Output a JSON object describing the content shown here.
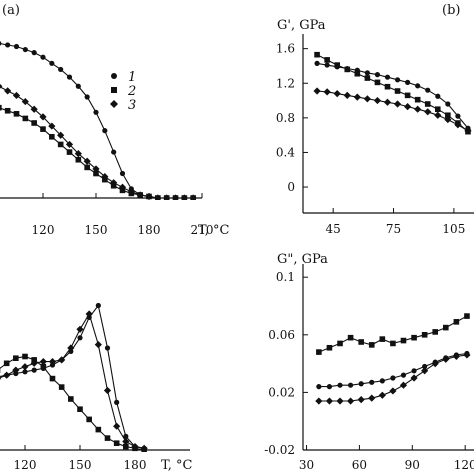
{
  "panel_labels": [
    "(a)",
    "(b)"
  ],
  "legend": [
    "1",
    "2",
    "3"
  ],
  "chart_data": [
    {
      "id": "top-left",
      "type": "line",
      "xlabel": "T, °C",
      "ylabel": "",
      "xlim": [
        90,
        210
      ],
      "ylim": [
        0,
        1.15
      ],
      "xticks": [
        120,
        150,
        180,
        210
      ],
      "yticks": [],
      "grid": false,
      "legend_position": "top-right",
      "series": [
        {
          "name": "1",
          "marker": "circle",
          "x": [
            90,
            95,
            100,
            105,
            110,
            115,
            120,
            125,
            130,
            135,
            140,
            145,
            150,
            155,
            160,
            165,
            170,
            175,
            180,
            185,
            190,
            195,
            200,
            205
          ],
          "y": [
            1.02,
            1.01,
            1.0,
            0.99,
            0.97,
            0.95,
            0.92,
            0.88,
            0.84,
            0.79,
            0.73,
            0.66,
            0.56,
            0.44,
            0.3,
            0.16,
            0.06,
            0.02,
            0.01,
            0.0,
            0.0,
            0.0,
            0.0,
            0.0
          ]
        },
        {
          "name": "2",
          "marker": "square",
          "x": [
            90,
            95,
            100,
            105,
            110,
            115,
            120,
            125,
            130,
            135,
            140,
            145,
            150,
            155,
            160,
            165,
            170,
            175,
            180,
            185,
            190,
            195,
            200,
            205
          ],
          "y": [
            0.6,
            0.59,
            0.57,
            0.55,
            0.52,
            0.49,
            0.45,
            0.4,
            0.35,
            0.3,
            0.25,
            0.2,
            0.16,
            0.12,
            0.08,
            0.05,
            0.03,
            0.02,
            0.01,
            0.0,
            0.0,
            0.0,
            0.0,
            0.0
          ]
        },
        {
          "name": "3",
          "marker": "diamond",
          "x": [
            90,
            95,
            100,
            105,
            110,
            115,
            120,
            125,
            130,
            135,
            140,
            145,
            150,
            155,
            160,
            165,
            170,
            175,
            180,
            185,
            190,
            195,
            200,
            205
          ],
          "y": [
            0.75,
            0.73,
            0.7,
            0.67,
            0.63,
            0.58,
            0.53,
            0.47,
            0.41,
            0.35,
            0.29,
            0.24,
            0.19,
            0.14,
            0.1,
            0.07,
            0.04,
            0.02,
            0.01,
            0.0,
            0.0,
            0.0,
            0.0,
            0.0
          ]
        }
      ]
    },
    {
      "id": "top-right",
      "type": "line",
      "xlabel": "",
      "ylabel": "G', GPa",
      "xlim": [
        30,
        115
      ],
      "ylim": [
        -0.3,
        1.7
      ],
      "xticks": [
        45,
        75,
        105
      ],
      "yticks": [
        0,
        0.4,
        0.8,
        1.2,
        1.6
      ],
      "grid": false,
      "series": [
        {
          "name": "1",
          "marker": "circle",
          "x": [
            37,
            42,
            47,
            52,
            57,
            62,
            67,
            72,
            77,
            82,
            87,
            92,
            97,
            102,
            107,
            112
          ],
          "y": [
            1.43,
            1.41,
            1.39,
            1.37,
            1.35,
            1.32,
            1.3,
            1.27,
            1.24,
            1.21,
            1.17,
            1.12,
            1.05,
            0.96,
            0.82,
            0.68
          ]
        },
        {
          "name": "2",
          "marker": "square",
          "x": [
            37,
            42,
            47,
            52,
            57,
            62,
            67,
            72,
            77,
            82,
            87,
            92,
            97,
            102,
            107,
            112
          ],
          "y": [
            1.53,
            1.47,
            1.41,
            1.36,
            1.31,
            1.26,
            1.21,
            1.16,
            1.11,
            1.06,
            1.01,
            0.96,
            0.9,
            0.83,
            0.74,
            0.64
          ]
        },
        {
          "name": "3",
          "marker": "diamond",
          "x": [
            37,
            42,
            47,
            52,
            57,
            62,
            67,
            72,
            77,
            82,
            87,
            92,
            97,
            102,
            107,
            112
          ],
          "y": [
            1.11,
            1.1,
            1.08,
            1.06,
            1.04,
            1.02,
            1.0,
            0.98,
            0.96,
            0.93,
            0.9,
            0.87,
            0.83,
            0.78,
            0.72,
            0.65
          ]
        }
      ]
    },
    {
      "id": "bottom-left",
      "type": "line",
      "xlabel": "T, °C",
      "ylabel": "",
      "xlim": [
        90,
        210
      ],
      "ylim": [
        0,
        1.0
      ],
      "xticks": [
        120,
        150,
        180
      ],
      "yticks": [],
      "grid": false,
      "series": [
        {
          "name": "1",
          "marker": "circle",
          "x": [
            90,
            95,
            100,
            105,
            110,
            115,
            120,
            125,
            130,
            135,
            140,
            145,
            150,
            155,
            160,
            165,
            170,
            175,
            180,
            185
          ],
          "y": [
            0.4,
            0.41,
            0.42,
            0.43,
            0.44,
            0.45,
            0.46,
            0.47,
            0.48,
            0.5,
            0.53,
            0.58,
            0.66,
            0.78,
            0.85,
            0.6,
            0.28,
            0.08,
            0.02,
            0.01
          ]
        },
        {
          "name": "2",
          "marker": "square",
          "x": [
            90,
            95,
            100,
            105,
            110,
            115,
            120,
            125,
            130,
            135,
            140,
            145,
            150,
            155,
            160,
            165,
            170,
            175,
            180,
            185
          ],
          "y": [
            0.4,
            0.42,
            0.44,
            0.47,
            0.51,
            0.54,
            0.55,
            0.53,
            0.49,
            0.42,
            0.37,
            0.3,
            0.24,
            0.18,
            0.12,
            0.07,
            0.04,
            0.02,
            0.01,
            0.0
          ]
        },
        {
          "name": "3",
          "marker": "diamond",
          "x": [
            90,
            95,
            100,
            105,
            110,
            115,
            120,
            125,
            130,
            135,
            140,
            145,
            150,
            155,
            160,
            165,
            170,
            175,
            180,
            185
          ],
          "y": [
            0.37,
            0.38,
            0.4,
            0.42,
            0.44,
            0.47,
            0.49,
            0.51,
            0.52,
            0.52,
            0.53,
            0.6,
            0.71,
            0.8,
            0.62,
            0.35,
            0.14,
            0.05,
            0.02,
            0.01
          ]
        }
      ]
    },
    {
      "id": "bottom-right",
      "type": "line",
      "xlabel": "",
      "ylabel": "G\", GPa",
      "xlim": [
        28,
        125
      ],
      "ylim": [
        -0.02,
        0.105
      ],
      "xticks": [
        30,
        60,
        90,
        120
      ],
      "yticks": [
        -0.02,
        0.02,
        0.06,
        0.1
      ],
      "grid": false,
      "series": [
        {
          "name": "1",
          "marker": "circle",
          "x": [
            37,
            43,
            49,
            55,
            61,
            67,
            73,
            79,
            85,
            91,
            97,
            103,
            109,
            115,
            121
          ],
          "y": [
            0.024,
            0.024,
            0.025,
            0.025,
            0.026,
            0.027,
            0.028,
            0.03,
            0.032,
            0.035,
            0.038,
            0.041,
            0.044,
            0.046,
            0.047
          ]
        },
        {
          "name": "2",
          "marker": "square",
          "x": [
            37,
            43,
            49,
            55,
            61,
            67,
            73,
            79,
            85,
            91,
            97,
            103,
            109,
            115,
            121
          ],
          "y": [
            0.048,
            0.051,
            0.054,
            0.058,
            0.055,
            0.053,
            0.057,
            0.054,
            0.056,
            0.058,
            0.06,
            0.062,
            0.065,
            0.069,
            0.073
          ]
        },
        {
          "name": "3",
          "marker": "diamond",
          "x": [
            37,
            43,
            49,
            55,
            61,
            67,
            73,
            79,
            85,
            91,
            97,
            103,
            109,
            115,
            121
          ],
          "y": [
            0.014,
            0.014,
            0.014,
            0.014,
            0.015,
            0.016,
            0.018,
            0.021,
            0.025,
            0.03,
            0.035,
            0.04,
            0.043,
            0.045,
            0.046
          ]
        }
      ]
    }
  ]
}
